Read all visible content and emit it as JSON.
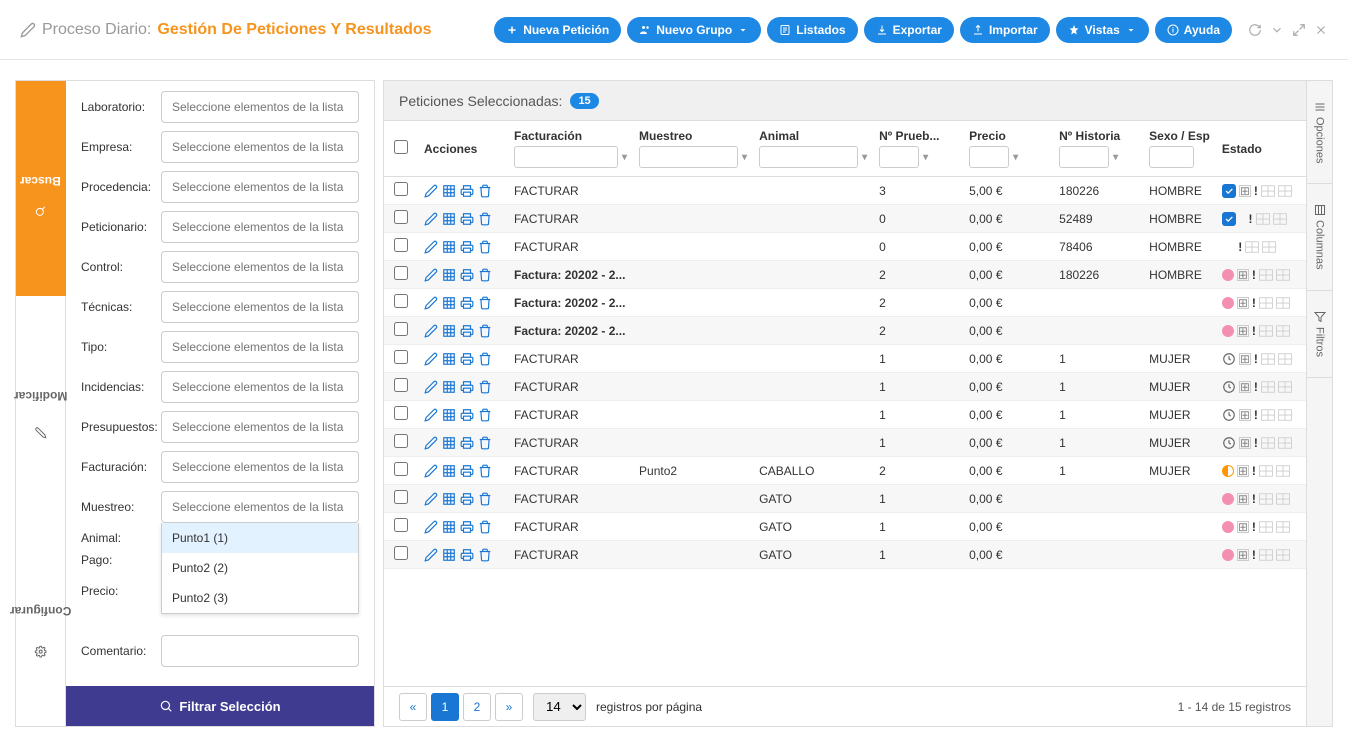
{
  "colors": {
    "accent_orange": "#f7941e",
    "btn_blue": "#1e88e5",
    "btn_purple": "#3f3b91",
    "link_blue": "#1976d2"
  },
  "header": {
    "breadcrumb_parent": "Proceso Diario:",
    "breadcrumb_current": "Gestión De Peticiones Y Resultados",
    "buttons": {
      "nueva_peticion": "Nueva Petición",
      "nuevo_grupo": "Nuevo Grupo",
      "listados": "Listados",
      "exportar": "Exportar",
      "importar": "Importar",
      "vistas": "Vistas",
      "ayuda": "Ayuda"
    }
  },
  "left_tabs": {
    "buscar": "Buscar",
    "modificar": "Modificar",
    "configurar": "Configurar"
  },
  "filter_labels": {
    "laboratorio": "Laboratorio:",
    "empresa": "Empresa:",
    "procedencia": "Procedencia:",
    "peticionario": "Peticionario:",
    "control": "Control:",
    "tecnicas": "Técnicas:",
    "tipo": "Tipo:",
    "incidencias": "Incidencias:",
    "presupuestos": "Presupuestos:",
    "facturacion": "Facturación:",
    "muestreo": "Muestreo:",
    "animal": "Animal:",
    "pago": "Pago:",
    "precio": "Precio:",
    "comentario": "Comentario:"
  },
  "filter_placeholder": "Seleccione elementos de la lista",
  "muestreo_dropdown": [
    "Punto1 (1)",
    "Punto2 (2)",
    "Punto2 (3)"
  ],
  "filter_button": "Filtrar Selección",
  "table_header": {
    "label": "Peticiones Seleccionadas:",
    "count": "15"
  },
  "columns": {
    "acciones": "Acciones",
    "facturacion": "Facturación",
    "muestreo": "Muestreo",
    "animal": "Animal",
    "n_prueb": "Nº Prueb...",
    "precio": "Precio",
    "n_historia": "Nº Historia",
    "sexo": "Sexo / Esp",
    "estado": "Estado"
  },
  "rows": [
    {
      "facturacion": "FACTURAR",
      "muestreo": "",
      "animal": "",
      "n_prueb": "3",
      "precio": "5,00 €",
      "n_historia": "180226",
      "sexo": "HOMBRE",
      "estado_type": "check",
      "bold": false
    },
    {
      "facturacion": "FACTURAR",
      "muestreo": "",
      "animal": "",
      "n_prueb": "0",
      "precio": "0,00 €",
      "n_historia": "52489",
      "sexo": "HOMBRE",
      "estado_type": "check_excl",
      "bold": false
    },
    {
      "facturacion": "FACTURAR",
      "muestreo": "",
      "animal": "",
      "n_prueb": "0",
      "precio": "0,00 €",
      "n_historia": "78406",
      "sexo": "HOMBRE",
      "estado_type": "excl_only",
      "bold": false
    },
    {
      "facturacion": "Factura: 20202 - 2...",
      "muestreo": "",
      "animal": "",
      "n_prueb": "2",
      "precio": "0,00 €",
      "n_historia": "180226",
      "sexo": "HOMBRE",
      "estado_type": "pink",
      "bold": true
    },
    {
      "facturacion": "Factura: 20202 - 2...",
      "muestreo": "",
      "animal": "",
      "n_prueb": "2",
      "precio": "0,00 €",
      "n_historia": "",
      "sexo": "",
      "estado_type": "pink",
      "bold": true
    },
    {
      "facturacion": "Factura: 20202 - 2...",
      "muestreo": "",
      "animal": "",
      "n_prueb": "2",
      "precio": "0,00 €",
      "n_historia": "",
      "sexo": "",
      "estado_type": "pink",
      "bold": true
    },
    {
      "facturacion": "FACTURAR",
      "muestreo": "",
      "animal": "",
      "n_prueb": "1",
      "precio": "0,00 €",
      "n_historia": "1",
      "sexo": "MUJER",
      "estado_type": "clock",
      "bold": false
    },
    {
      "facturacion": "FACTURAR",
      "muestreo": "",
      "animal": "",
      "n_prueb": "1",
      "precio": "0,00 €",
      "n_historia": "1",
      "sexo": "MUJER",
      "estado_type": "clock",
      "bold": false
    },
    {
      "facturacion": "FACTURAR",
      "muestreo": "",
      "animal": "",
      "n_prueb": "1",
      "precio": "0,00 €",
      "n_historia": "1",
      "sexo": "MUJER",
      "estado_type": "clock",
      "bold": false
    },
    {
      "facturacion": "FACTURAR",
      "muestreo": "",
      "animal": "",
      "n_prueb": "1",
      "precio": "0,00 €",
      "n_historia": "1",
      "sexo": "MUJER",
      "estado_type": "clock",
      "bold": false
    },
    {
      "facturacion": "FACTURAR",
      "muestreo": "Punto2",
      "animal": "CABALLO",
      "n_prueb": "2",
      "precio": "0,00 €",
      "n_historia": "1",
      "sexo": "MUJER",
      "estado_type": "orange",
      "bold": false
    },
    {
      "facturacion": "FACTURAR",
      "muestreo": "",
      "animal": "GATO",
      "n_prueb": "1",
      "precio": "0,00 €",
      "n_historia": "",
      "sexo": "",
      "estado_type": "pink",
      "bold": false
    },
    {
      "facturacion": "FACTURAR",
      "muestreo": "",
      "animal": "GATO",
      "n_prueb": "1",
      "precio": "0,00 €",
      "n_historia": "",
      "sexo": "",
      "estado_type": "pink",
      "bold": false
    },
    {
      "facturacion": "FACTURAR",
      "muestreo": "",
      "animal": "GATO",
      "n_prueb": "1",
      "precio": "0,00 €",
      "n_historia": "",
      "sexo": "",
      "estado_type": "pink",
      "bold": false
    }
  ],
  "pagination": {
    "pages": [
      "1",
      "2"
    ],
    "page_size": "14",
    "per_page_label": "registros por página",
    "record_count": "1 - 14 de 15 registros"
  },
  "right_tabs": {
    "opciones": "Opciones",
    "columnas": "Columnas",
    "filtros": "Filtros"
  }
}
